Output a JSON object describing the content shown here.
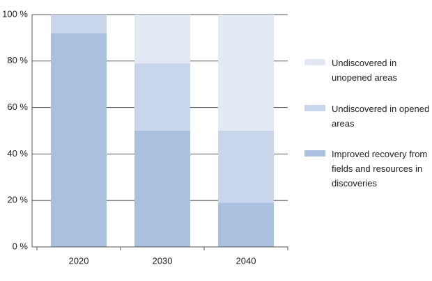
{
  "chart_data": {
    "type": "stacked_bar",
    "categories": [
      "2020",
      "2030",
      "2040"
    ],
    "series": [
      {
        "name": "Improved recovery from fields and resources in discoveries",
        "color": "#abbfdf",
        "values": [
          92,
          50,
          19
        ]
      },
      {
        "name": "Undiscovered in opened areas",
        "color": "#c8d5ea",
        "values": [
          8,
          29,
          31
        ]
      },
      {
        "name": "Undiscovered in unopened areas",
        "color": "#e2e9f4",
        "values": [
          0,
          21,
          50
        ]
      }
    ],
    "ylim": [
      0,
      100
    ],
    "yticks": [
      {
        "value": 0,
        "label": "0 %"
      },
      {
        "value": 20,
        "label": "20 %"
      },
      {
        "value": 40,
        "label": "40 %"
      },
      {
        "value": 60,
        "label": "60 %"
      },
      {
        "value": 80,
        "label": "80 %"
      },
      {
        "value": 100,
        "label": "100 %"
      }
    ],
    "grid": true
  }
}
